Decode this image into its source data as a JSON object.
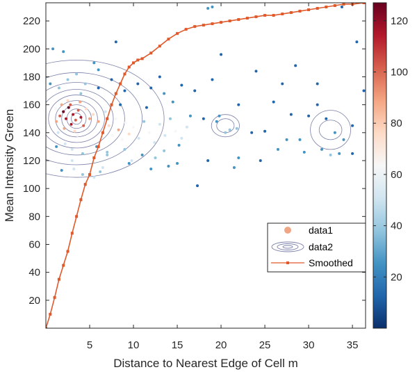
{
  "chart_data": {
    "type": "scatter",
    "xlabel": "Distance to Nearest Edge of Cell m",
    "ylabel": "Mean Intensity Green",
    "xlim": [
      0,
      36.5
    ],
    "ylim": [
      0,
      233
    ],
    "xticks": [
      5,
      10,
      15,
      20,
      25,
      30,
      35
    ],
    "yticks": [
      20,
      40,
      60,
      80,
      100,
      120,
      140,
      160,
      180,
      200,
      220
    ],
    "grid": false,
    "legend": {
      "placement": "bottom-right",
      "entries": [
        "data1",
        "data2",
        "Smoothed"
      ]
    },
    "colorbar": {
      "min": 0,
      "max": 127,
      "ticks": [
        20,
        40,
        60,
        80,
        100,
        120
      ],
      "colormap": [
        "#0a2f6b",
        "#2166ac",
        "#4393c3",
        "#92c5de",
        "#d1e5f0",
        "#f7f7f7",
        "#fddbc7",
        "#f4a582",
        "#d6604d",
        "#b2182b",
        "#67001f"
      ]
    },
    "series": [
      {
        "name": "data1",
        "type": "scatter-density",
        "note_color_by": "point density",
        "points": [
          [
            1.2,
            148
          ],
          [
            1.6,
            152
          ],
          [
            2.0,
            155
          ],
          [
            2.3,
            150
          ],
          [
            2.6,
            158
          ],
          [
            2.9,
            146
          ],
          [
            3.1,
            153
          ],
          [
            3.4,
            149
          ],
          [
            3.7,
            156
          ],
          [
            4.0,
            151
          ],
          [
            4.3,
            145
          ],
          [
            2.1,
            143
          ],
          [
            2.8,
            160
          ],
          [
            3.3,
            141
          ],
          [
            3.9,
            162
          ],
          [
            1.8,
            160
          ],
          [
            4.6,
            157
          ],
          [
            1.4,
            140
          ],
          [
            5.0,
            150
          ],
          [
            2.5,
            163
          ],
          [
            3.6,
            138
          ],
          [
            4.9,
            142
          ],
          [
            1.1,
            157
          ],
          [
            5.4,
            153
          ],
          [
            6.0,
            148
          ],
          [
            6.5,
            140
          ],
          [
            6.8,
            155
          ],
          [
            7.2,
            145
          ],
          [
            7.6,
            138
          ],
          [
            8.0,
            150
          ],
          [
            8.3,
            142
          ],
          [
            8.7,
            135
          ],
          [
            9.1,
            147
          ],
          [
            9.5,
            139
          ],
          [
            10.0,
            144
          ],
          [
            10.6,
            136
          ],
          [
            11.2,
            148
          ],
          [
            11.8,
            140
          ],
          [
            12.4,
            133
          ],
          [
            13.0,
            146
          ],
          [
            13.6,
            138
          ],
          [
            14.2,
            150
          ],
          [
            14.8,
            141
          ],
          [
            15.5,
            136
          ],
          [
            16.1,
            144
          ],
          [
            3.0,
            128
          ],
          [
            4.2,
            125
          ],
          [
            2.2,
            132
          ],
          [
            5.8,
            130
          ],
          [
            7.0,
            126
          ],
          [
            9.0,
            128
          ],
          [
            11.0,
            124
          ],
          [
            13.5,
            127
          ],
          [
            15.2,
            131
          ],
          [
            1.5,
            172
          ],
          [
            2.5,
            178
          ],
          [
            3.5,
            182
          ],
          [
            4.5,
            175
          ],
          [
            6.0,
            185
          ],
          [
            7.5,
            178
          ],
          [
            9.0,
            170
          ],
          [
            10.5,
            175
          ],
          [
            12.0,
            172
          ],
          [
            13.5,
            168
          ],
          [
            3.0,
            120
          ],
          [
            6.5,
            115
          ],
          [
            9.5,
            118
          ],
          [
            12.5,
            122
          ],
          [
            15.0,
            118
          ],
          [
            18.5,
            120
          ],
          [
            19.5,
            148
          ],
          [
            20.5,
            140
          ],
          [
            21.8,
            143
          ],
          [
            22.0,
            122
          ],
          [
            25.0,
            141
          ],
          [
            26.5,
            128
          ],
          [
            30.0,
            152
          ],
          [
            31.0,
            160
          ],
          [
            32.0,
            150
          ],
          [
            33.0,
            140
          ],
          [
            34.0,
            135
          ],
          [
            35.0,
            145
          ],
          [
            29.0,
            135
          ],
          [
            31.5,
            128
          ],
          [
            33.5,
            125
          ],
          [
            36.3,
            170
          ],
          [
            33.8,
            230
          ],
          [
            18.5,
            229
          ],
          [
            19.0,
            230
          ],
          [
            17.3,
            102
          ],
          [
            21.5,
            115
          ],
          [
            22.0,
            160
          ],
          [
            27.0,
            175
          ],
          [
            28.5,
            188
          ],
          [
            31.0,
            175
          ],
          [
            23.5,
            140
          ],
          [
            26.0,
            162
          ],
          [
            28.0,
            153
          ],
          [
            29.5,
            126
          ],
          [
            32.5,
            124
          ],
          [
            35.0,
            125
          ],
          [
            0.8,
            200
          ],
          [
            2.0,
            198
          ],
          [
            5.5,
            190
          ],
          [
            8.0,
            205
          ],
          [
            10.0,
            190
          ],
          [
            13.0,
            180
          ],
          [
            15.5,
            174
          ],
          [
            17.0,
            170
          ],
          [
            19.0,
            178
          ],
          [
            20.0,
            196
          ],
          [
            24.0,
            184
          ],
          [
            0.5,
            175
          ],
          [
            1.2,
            130
          ],
          [
            4.0,
            168
          ],
          [
            6.0,
            172
          ],
          [
            8.5,
            160
          ],
          [
            11.5,
            158
          ],
          [
            14.5,
            162
          ],
          [
            16.5,
            152
          ],
          [
            18.0,
            150
          ],
          [
            19.8,
            152
          ],
          [
            21.0,
            142
          ],
          [
            24.5,
            120
          ],
          [
            27.5,
            135
          ],
          [
            35.5,
            205
          ],
          [
            5.5,
            108
          ],
          [
            4.2,
            110
          ],
          [
            3.2,
            114
          ],
          [
            6.2,
            112
          ],
          [
            1.8,
            113
          ],
          [
            7.0,
            124
          ],
          [
            9.8,
            120
          ],
          [
            12.0,
            114
          ],
          [
            14.0,
            116
          ]
        ]
      },
      {
        "name": "data2",
        "type": "contour",
        "centers": [
          [
            3.5,
            150
          ],
          [
            20.5,
            145
          ],
          [
            32.5,
            142
          ]
        ]
      },
      {
        "name": "Smoothed",
        "type": "line",
        "x": [
          0.0,
          0.5,
          1.0,
          1.5,
          2.0,
          2.5,
          3.0,
          3.5,
          4.0,
          4.5,
          5.0,
          5.5,
          6.0,
          6.5,
          7.0,
          7.5,
          8.0,
          8.5,
          9.0,
          9.5,
          10.0,
          10.5,
          11.0,
          12.0,
          13.0,
          14.0,
          15.0,
          16.0,
          17.0,
          18.0,
          19.0,
          20.0,
          21.0,
          22.0,
          23.0,
          24.0,
          25.0,
          26.0,
          27.0,
          28.0,
          29.0,
          30.0,
          31.0,
          32.0,
          33.0,
          34.0,
          35.0,
          36.3
        ],
        "y": [
          0,
          10,
          22,
          35,
          45,
          55,
          68,
          80,
          92,
          103,
          110,
          122,
          130,
          140,
          150,
          160,
          168,
          175,
          182,
          187,
          190,
          192,
          193,
          197,
          202,
          207,
          211,
          214,
          216,
          217,
          218,
          219,
          220,
          221,
          222,
          223,
          224,
          224,
          225,
          226,
          227,
          228,
          229,
          230,
          231,
          232,
          232,
          233
        ]
      }
    ]
  }
}
